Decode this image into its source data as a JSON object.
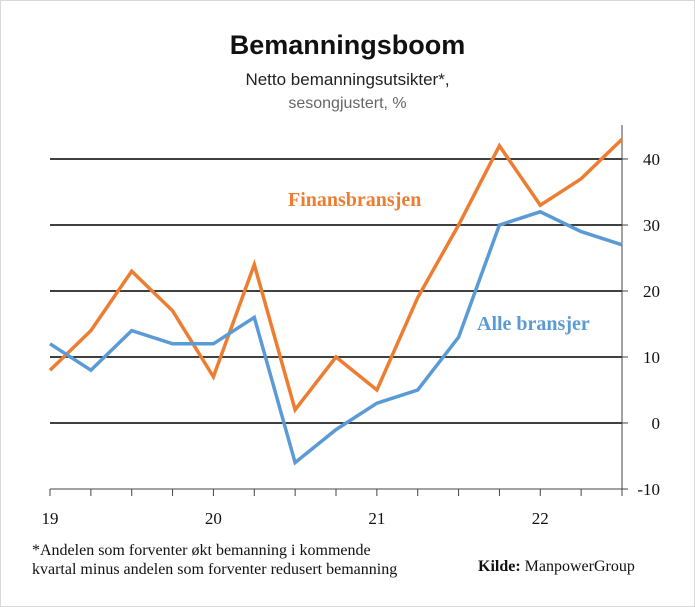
{
  "chart_data": {
    "type": "line",
    "title": "Bemanningsboom",
    "subtitle_line1": "Netto bemanningsutsikter*,",
    "subtitle_line2": "sesongjustert, %",
    "x_tick_labels": [
      "19",
      "20",
      "21",
      "22"
    ],
    "x_quarters": [
      "2019Q1",
      "2019Q2",
      "2019Q3",
      "2019Q4",
      "2020Q1",
      "2020Q2",
      "2020Q3",
      "2020Q4",
      "2021Q1",
      "2021Q2",
      "2021Q3",
      "2021Q4",
      "2022Q1",
      "2022Q2",
      "2022Q3"
    ],
    "y_ticks": [
      -10,
      0,
      10,
      20,
      30,
      40
    ],
    "ylim": [
      -10,
      45
    ],
    "grid": "horizontal",
    "series": [
      {
        "name": "Finansbransjen",
        "color": "#ED7D31",
        "values": [
          8,
          14,
          23,
          17,
          7,
          24,
          2,
          10,
          5,
          19,
          30,
          42,
          33,
          37,
          43
        ]
      },
      {
        "name": "Alle bransjer",
        "color": "#5B9BD5",
        "values": [
          12,
          8,
          14,
          12,
          12,
          16,
          -6,
          -1,
          3,
          5,
          13,
          30,
          32,
          29,
          27
        ]
      }
    ],
    "footnote_line1": "*Andelen som forventer økt bemanning i kommende",
    "footnote_line2": "kvartal minus andelen som forventer redusert bemanning",
    "source_label": "Kilde:",
    "source_value": "ManpowerGroup"
  }
}
